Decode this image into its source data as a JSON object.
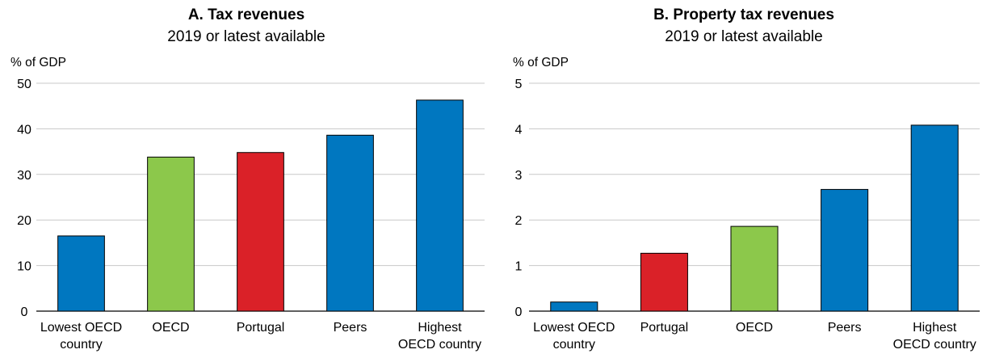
{
  "chart_data": [
    {
      "type": "bar",
      "title": "A. Tax revenues",
      "subtitle": "2019 or latest available",
      "ylabel": "% of GDP",
      "xlabel": "",
      "ylim": [
        0,
        50
      ],
      "yticks": [
        0,
        10,
        20,
        30,
        40,
        50
      ],
      "grid": true,
      "categories": [
        [
          "Lowest OECD",
          "country"
        ],
        [
          "OECD"
        ],
        [
          "Portugal"
        ],
        [
          "Peers"
        ],
        [
          "Highest",
          "OECD country"
        ]
      ],
      "values": [
        16.5,
        33.8,
        34.8,
        38.6,
        46.3
      ],
      "bar_colors": [
        "#0077c0",
        "#8cc84b",
        "#da2128",
        "#0077c0",
        "#0077c0"
      ]
    },
    {
      "type": "bar",
      "title": "B. Property tax revenues",
      "subtitle": "2019 or latest available",
      "ylabel": "% of GDP",
      "xlabel": "",
      "ylim": [
        0,
        5
      ],
      "yticks": [
        0,
        1,
        2,
        3,
        4,
        5
      ],
      "grid": true,
      "categories": [
        [
          "Lowest OECD",
          "country"
        ],
        [
          "Portugal"
        ],
        [
          "OECD"
        ],
        [
          "Peers"
        ],
        [
          "Highest",
          "OECD country"
        ]
      ],
      "values": [
        0.2,
        1.27,
        1.86,
        2.67,
        4.08
      ],
      "bar_colors": [
        "#0077c0",
        "#da2128",
        "#8cc84b",
        "#0077c0",
        "#0077c0"
      ]
    }
  ]
}
